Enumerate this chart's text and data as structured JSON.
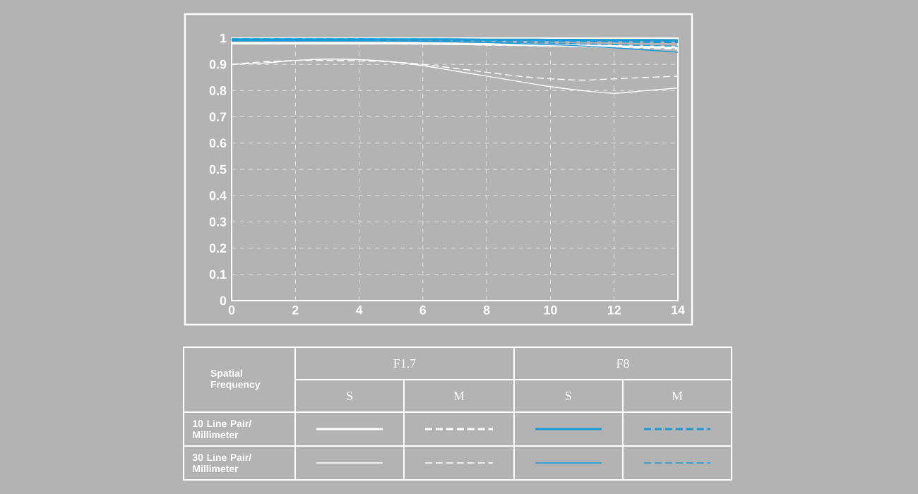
{
  "chart_data": {
    "type": "line",
    "x": [
      0,
      1,
      2,
      3,
      4,
      5,
      6,
      7,
      8,
      9,
      10,
      11,
      12,
      13,
      14
    ],
    "series": [
      {
        "color": "#ffffff",
        "line_style": "solid",
        "values": [
          0.98,
          0.98,
          0.98,
          0.98,
          0.98,
          0.98,
          0.98,
          0.978,
          0.977,
          0.975,
          0.973,
          0.971,
          0.969,
          0.967,
          0.965
        ]
      },
      {
        "color": "#ffffff",
        "line_style": "dashed",
        "values": [
          0.98,
          0.98,
          0.98,
          0.98,
          0.98,
          0.98,
          0.979,
          0.978,
          0.976,
          0.974,
          0.972,
          0.97,
          0.967,
          0.964,
          0.96
        ]
      },
      {
        "color": "#1a9ad6",
        "line_style": "solid",
        "values": [
          0.995,
          0.995,
          0.995,
          0.995,
          0.995,
          0.995,
          0.995,
          0.995,
          0.994,
          0.994,
          0.993,
          0.993,
          0.992,
          0.992,
          0.991
        ]
      },
      {
        "color": "#1a9ad6",
        "line_style": "dashed",
        "values": [
          0.995,
          0.995,
          0.995,
          0.995,
          0.995,
          0.994,
          0.994,
          0.993,
          0.992,
          0.991,
          0.99,
          0.989,
          0.988,
          0.986,
          0.985
        ]
      },
      {
        "color": "#ffffff",
        "line_style": "solid",
        "values": [
          0.9,
          0.905,
          0.915,
          0.92,
          0.918,
          0.91,
          0.895,
          0.875,
          0.855,
          0.835,
          0.815,
          0.8,
          0.79,
          0.8,
          0.81
        ]
      },
      {
        "color": "#ffffff",
        "line_style": "dashed",
        "values": [
          0.9,
          0.91,
          0.915,
          0.915,
          0.913,
          0.91,
          0.9,
          0.885,
          0.87,
          0.855,
          0.845,
          0.84,
          0.845,
          0.85,
          0.855
        ]
      },
      {
        "color": "#1a9ad6",
        "line_style": "solid",
        "values": [
          0.99,
          0.99,
          0.99,
          0.99,
          0.99,
          0.989,
          0.988,
          0.986,
          0.983,
          0.979,
          0.975,
          0.97,
          0.963,
          0.955,
          0.946
        ]
      },
      {
        "color": "#1a9ad6",
        "line_style": "dashed",
        "values": [
          0.99,
          0.99,
          0.99,
          0.99,
          0.99,
          0.989,
          0.988,
          0.987,
          0.985,
          0.983,
          0.981,
          0.978,
          0.975,
          0.972,
          0.969
        ]
      }
    ],
    "xlim": [
      0,
      14
    ],
    "ylim": [
      0,
      1
    ],
    "xticks": [
      0,
      2,
      4,
      6,
      8,
      10,
      12,
      14
    ],
    "yticks": [
      0,
      0.1,
      0.2,
      0.3,
      0.4,
      0.5,
      0.6,
      0.7,
      0.8,
      0.9,
      1
    ],
    "grid": true,
    "annotations": [
      "Spatial Frequency",
      "F1.7",
      "F8",
      "S",
      "M",
      "S",
      "M",
      "10 Line Pair/ Millimeter",
      "30 Line Pair/ Millimeter"
    ]
  }
}
